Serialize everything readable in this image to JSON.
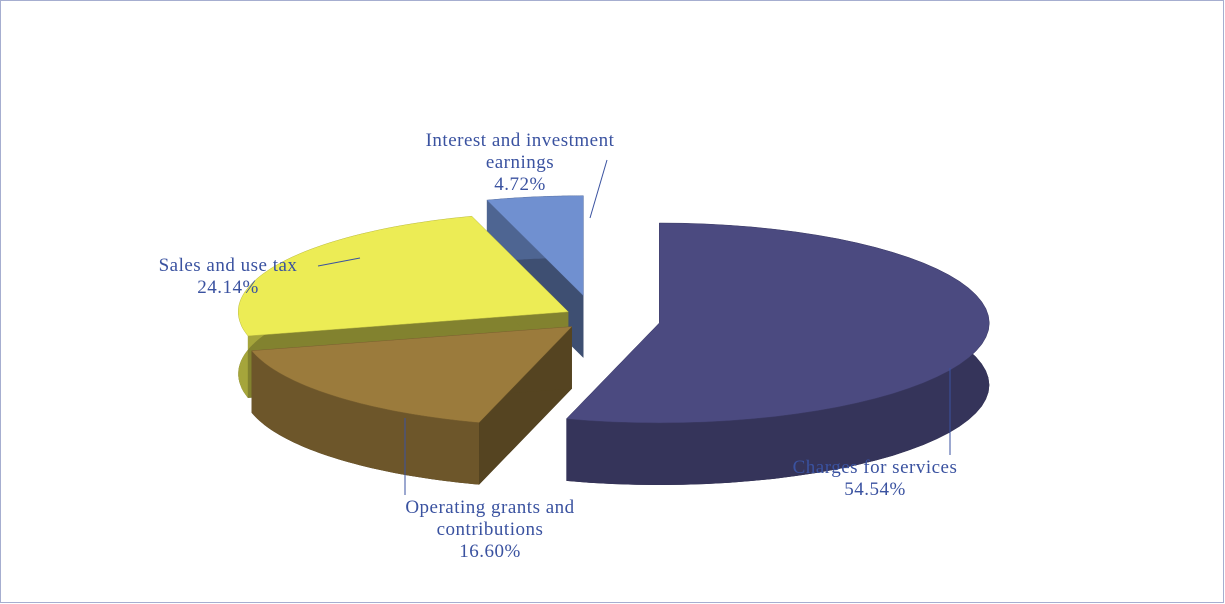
{
  "chart_data": {
    "type": "pie",
    "categories": [
      "Charges for services",
      "Operating grants and contributions",
      "Sales and use tax",
      "Interest and investment earnings"
    ],
    "values": [
      54.54,
      16.6,
      24.14,
      4.72
    ],
    "value_labels": [
      "54.54%",
      "16.60%",
      "24.14%",
      "4.72%"
    ],
    "colors": [
      "#4b4a80",
      "#9b7b3c",
      "#ecec55",
      "#7090d0"
    ]
  }
}
